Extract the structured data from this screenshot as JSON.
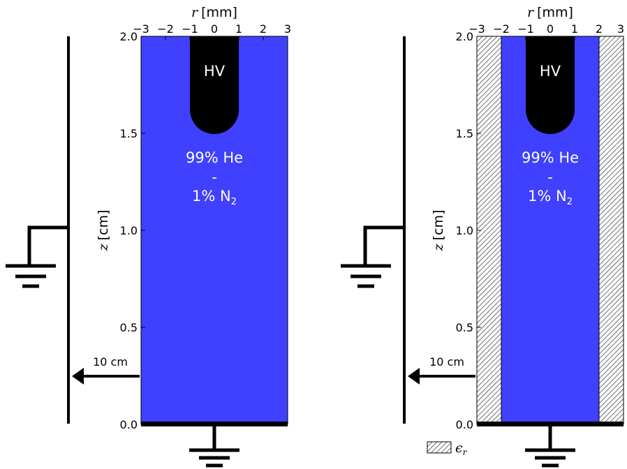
{
  "panels": [
    {
      "id": "left",
      "x_axis": {
        "symbol": "r",
        "unit": "[mm]",
        "ticks": [
          "−3",
          "−2",
          "−1",
          "0",
          "1",
          "2",
          "3"
        ]
      },
      "y_axis": {
        "symbol": "z",
        "unit": "[cm]",
        "ticks": [
          "0.0",
          "0.5",
          "1.0",
          "1.5",
          "2.0"
        ]
      },
      "electrode_label": "HV",
      "gas_line1": "99% He",
      "gas_line2": "-",
      "gas_line3_prefix": "1% N",
      "gas_line3_sub": "2",
      "distance_label": "10 cm",
      "has_dielectric": false
    },
    {
      "id": "right",
      "x_axis": {
        "symbol": "r",
        "unit": "[mm]",
        "ticks": [
          "−3",
          "−2",
          "−1",
          "0",
          "1",
          "2",
          "3"
        ]
      },
      "y_axis": {
        "symbol": "z",
        "unit": "[cm]",
        "ticks": [
          "0.0",
          "0.5",
          "1.0",
          "1.5",
          "2.0"
        ]
      },
      "electrode_label": "HV",
      "gas_line1": "99% He",
      "gas_line2": "-",
      "gas_line3_prefix": "1% N",
      "gas_line3_sub": "2",
      "distance_label": "10 cm",
      "has_dielectric": true
    }
  ],
  "legend": {
    "symbol": "ϵ",
    "subscript": "r"
  },
  "colors": {
    "gas": "#4040ff",
    "electrode": "#000000",
    "hatch_fill": "#ffffff",
    "hatch_line": "#333333"
  }
}
